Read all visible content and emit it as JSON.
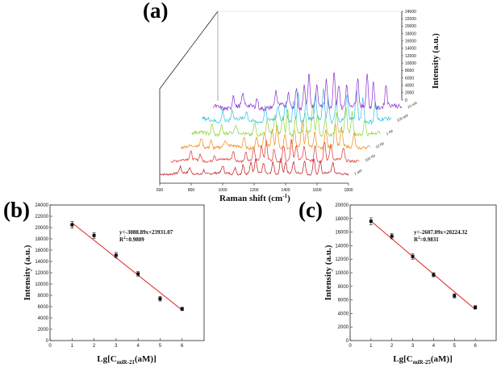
{
  "chart_data": [
    {
      "panel": "(a)",
      "type": "line",
      "xlabel": "Raman shift (cm",
      "xlabel_sup": "-1",
      "xlabel_end": ")",
      "xticks": [
        600,
        800,
        1000,
        1200,
        1400,
        1600,
        1800
      ],
      "xlim": [
        600,
        1800
      ],
      "zlabel": "Intensity (a.u.)",
      "zticks": [
        0,
        2000,
        4000,
        6000,
        8000,
        10000,
        12000,
        14000,
        16000,
        18000,
        20000,
        22000,
        24000
      ],
      "zlim": [
        0,
        24000
      ],
      "series": [
        {
          "name": "1 aM",
          "color": "#c0151b"
        },
        {
          "name": "100 fM",
          "color": "#e03030"
        },
        {
          "name": "10 fM",
          "color": "#ef8a1a"
        },
        {
          "name": "1 fM",
          "color": "#8ad63a"
        },
        {
          "name": "100 aM",
          "color": "#2ec0e0"
        },
        {
          "name": "10 nM",
          "color": "#8a2fd0"
        }
      ]
    },
    {
      "panel": "(b)",
      "type": "scatter",
      "xlabel_main": "Lg[C",
      "xlabel_sub": "miR-21",
      "xlabel_end": "(aM)]",
      "ylabel": "Intensity (a.u.)",
      "xlim": [
        0,
        7
      ],
      "ylim": [
        0,
        24000
      ],
      "xticks": [
        0,
        1,
        2,
        3,
        4,
        5,
        6
      ],
      "yticks": [
        0,
        2000,
        4000,
        6000,
        8000,
        10000,
        12000,
        14000,
        16000,
        18000,
        20000,
        22000,
        24000
      ],
      "x": [
        1,
        2,
        3,
        4,
        5,
        6
      ],
      "y": [
        20500,
        18600,
        15100,
        11800,
        7400,
        5600
      ],
      "err": [
        600,
        500,
        500,
        400,
        400,
        300
      ],
      "fit": {
        "slope": -3088.89,
        "intercept": 23931.07,
        "x_range": [
          1,
          6
        ],
        "color": "#e02020"
      },
      "equation": "y=-3088.89x+23931.07",
      "r2_main": "R",
      "r2_sup": "2",
      "r2_value": "=0.9809"
    },
    {
      "panel": "(c)",
      "type": "scatter",
      "xlabel_main": "Lg[C",
      "xlabel_sub": "miR-25",
      "xlabel_end": "(aM)]",
      "ylabel": "Intensity (a.u.)",
      "xlim": [
        0,
        7
      ],
      "ylim": [
        0,
        20000
      ],
      "xticks": [
        0,
        1,
        2,
        3,
        4,
        5,
        6
      ],
      "yticks": [
        0,
        2000,
        4000,
        6000,
        8000,
        10000,
        12000,
        14000,
        16000,
        18000,
        20000
      ],
      "x": [
        1,
        2,
        3,
        4,
        5,
        6
      ],
      "y": [
        17600,
        15400,
        12400,
        9700,
        6600,
        4900
      ],
      "err": [
        500,
        400,
        400,
        300,
        300,
        250
      ],
      "fit": {
        "slope": -2607.09,
        "intercept": 20224.32,
        "x_range": [
          1,
          6
        ],
        "color": "#e02020"
      },
      "equation": "y=-2607.09x+20224.32",
      "r2_main": "R",
      "r2_sup": "2",
      "r2_value": "=0.9831"
    }
  ]
}
